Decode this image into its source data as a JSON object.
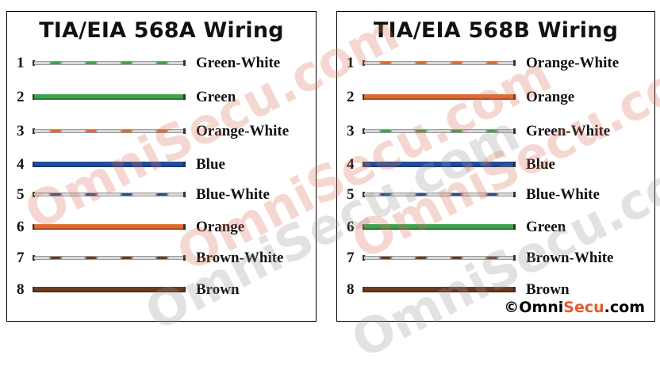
{
  "left": {
    "title": "TIA/EIA 568A Wiring",
    "pins": [
      {
        "num": "1",
        "label": "Green-White",
        "color": "#3aa34a",
        "striped": true
      },
      {
        "num": "2",
        "label": "Green",
        "color": "#3aa34a",
        "striped": false
      },
      {
        "num": "3",
        "label": "Orange-White",
        "color": "#e06a2c",
        "striped": true
      },
      {
        "num": "4",
        "label": "Blue",
        "color": "#1f4f9c",
        "striped": false
      },
      {
        "num": "5",
        "label": "Blue-White",
        "color": "#1f4f9c",
        "striped": true
      },
      {
        "num": "6",
        "label": "Orange",
        "color": "#e06a2c",
        "striped": false
      },
      {
        "num": "7",
        "label": "Brown-White",
        "color": "#6b3b1e",
        "striped": true
      },
      {
        "num": "8",
        "label": "Brown",
        "color": "#6b3b1e",
        "striped": false
      }
    ]
  },
  "right": {
    "title": "TIA/EIA 568B Wiring",
    "pins": [
      {
        "num": "1",
        "label": "Orange-White",
        "color": "#e06a2c",
        "striped": true
      },
      {
        "num": "2",
        "label": "Orange",
        "color": "#e06a2c",
        "striped": false
      },
      {
        "num": "3",
        "label": "Green-White",
        "color": "#3aa34a",
        "striped": true
      },
      {
        "num": "4",
        "label": "Blue",
        "color": "#1f4f9c",
        "striped": false
      },
      {
        "num": "5",
        "label": "Blue-White",
        "color": "#1f4f9c",
        "striped": true
      },
      {
        "num": "6",
        "label": "Green",
        "color": "#3aa34a",
        "striped": false
      },
      {
        "num": "7",
        "label": "Brown-White",
        "color": "#6b3b1e",
        "striped": true
      },
      {
        "num": "8",
        "label": "Brown",
        "color": "#6b3b1e",
        "striped": false
      }
    ]
  },
  "watermark": "OmniSecu.com",
  "copyright": {
    "symbol": "©",
    "brand_a": "Omni",
    "brand_b": "Secu",
    "suffix": ".com"
  }
}
